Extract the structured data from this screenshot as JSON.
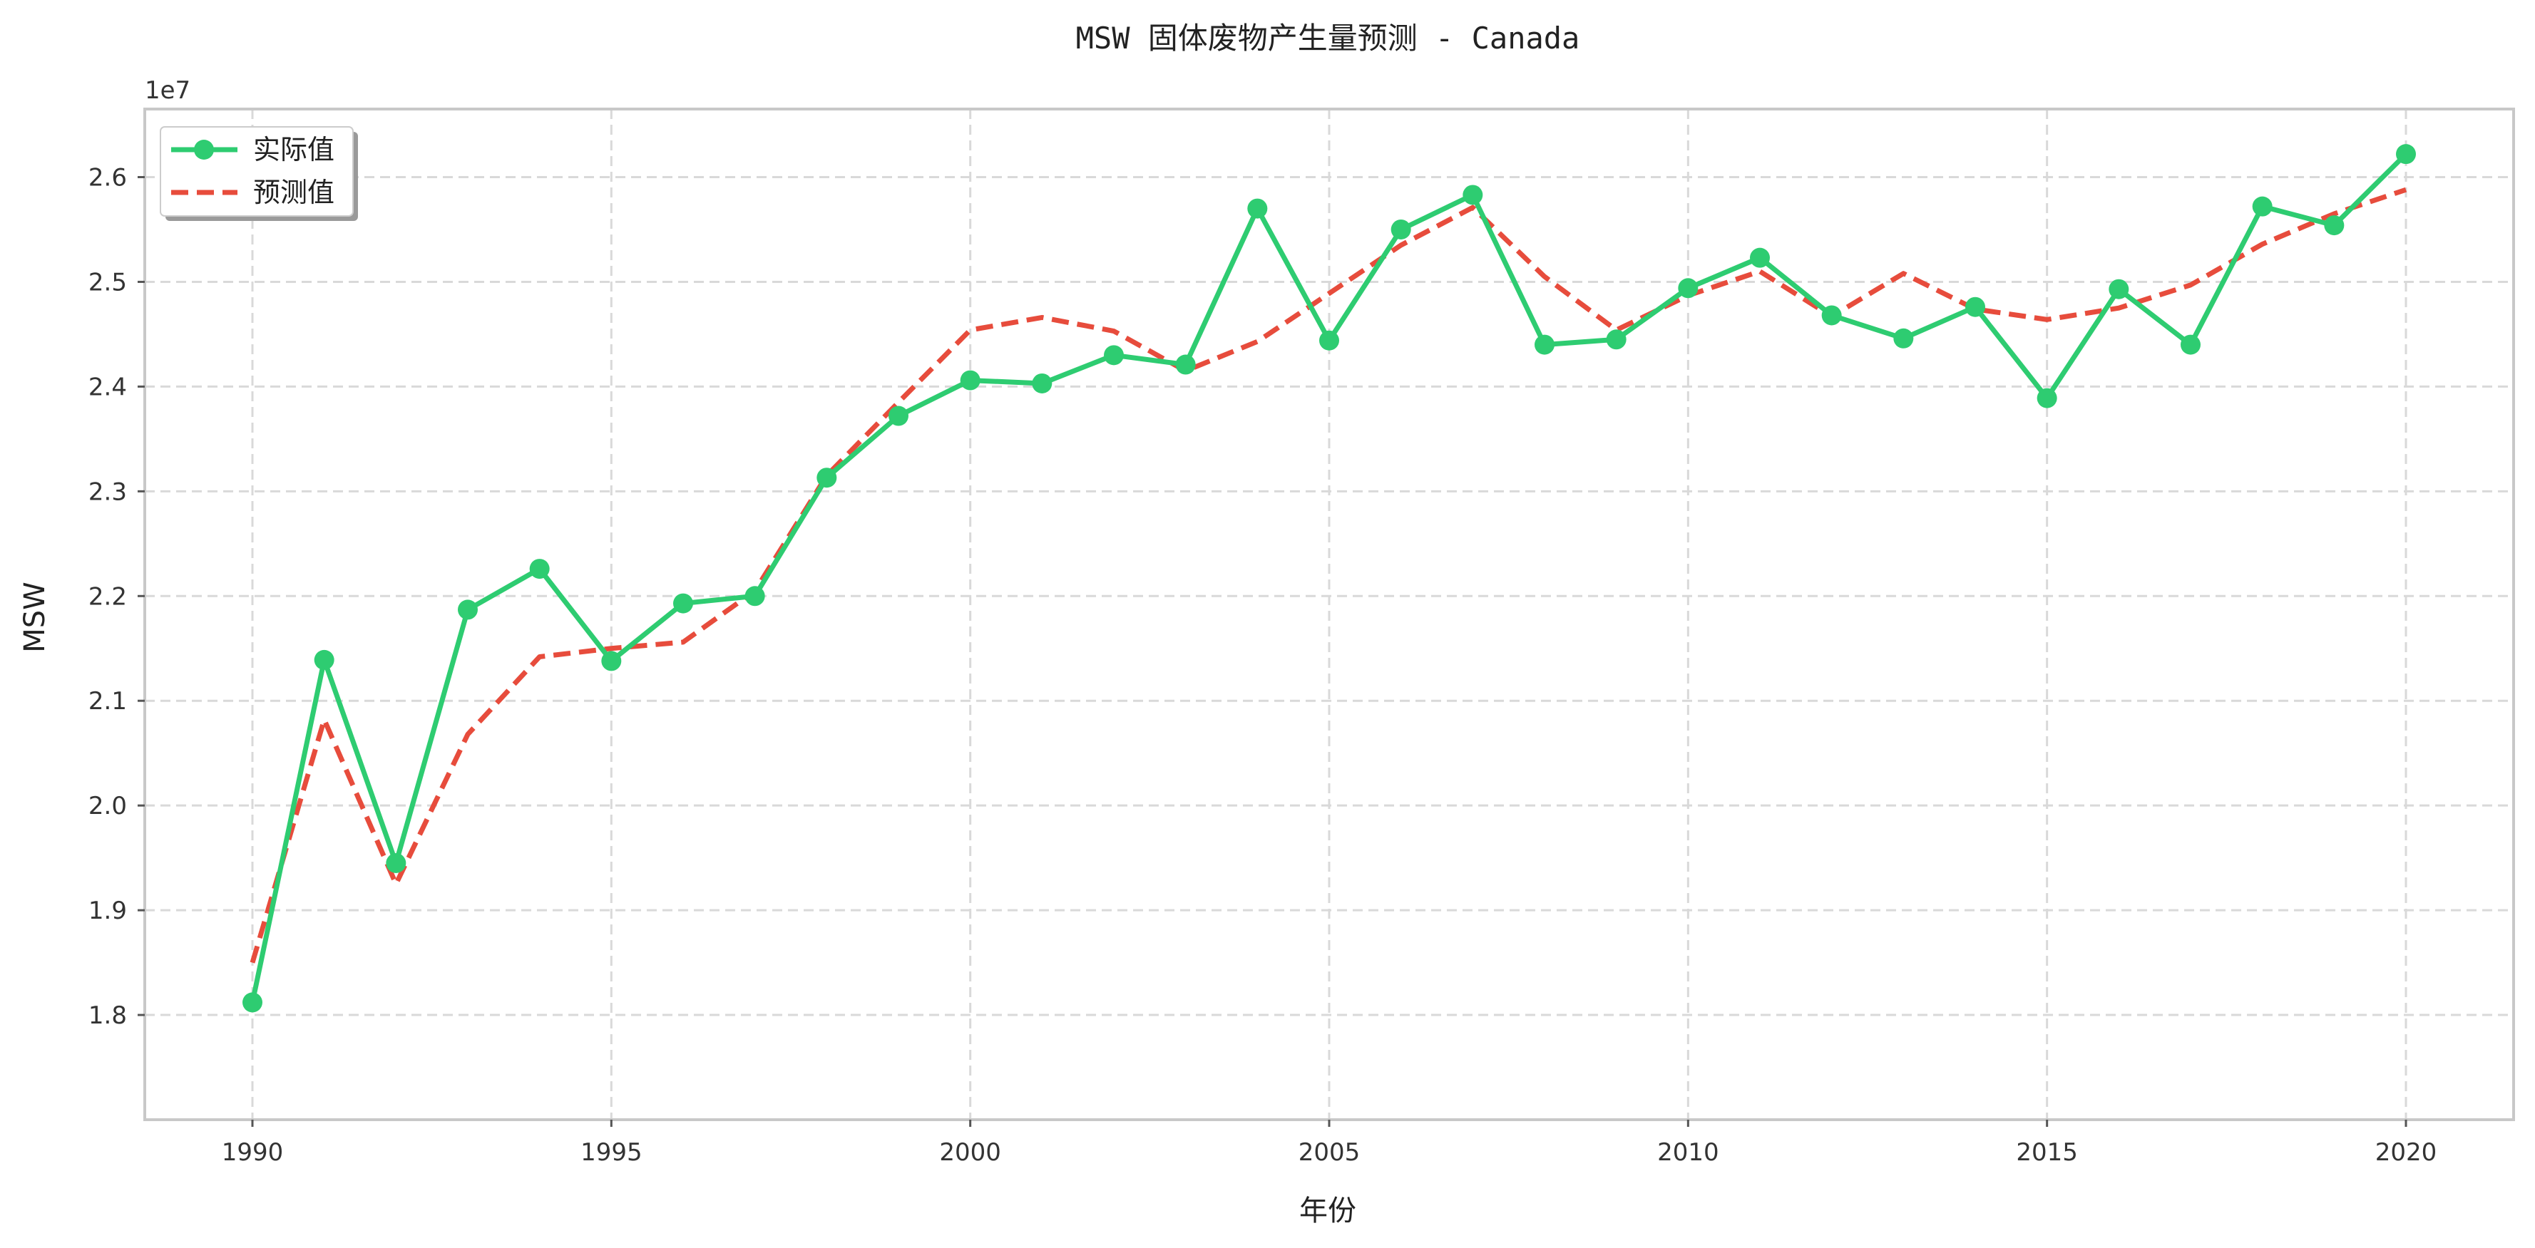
{
  "chart_data": {
    "type": "line",
    "title": "MSW 固体废物产生量预测 - Canada",
    "xlabel": "年份",
    "ylabel": "MSW",
    "y_offset_label": "1e7",
    "xlim": [
      1988.5,
      2021.5
    ],
    "ylim": [
      1.7,
      2.665
    ],
    "x_ticks": [
      1990,
      1995,
      2000,
      2005,
      2010,
      2015,
      2020
    ],
    "y_ticks": [
      1.8,
      1.9,
      2.0,
      2.1,
      2.2,
      2.3,
      2.4,
      2.5,
      2.6
    ],
    "y_tick_labels": [
      "1.8",
      "1.9",
      "2.0",
      "2.1",
      "2.2",
      "2.3",
      "2.4",
      "2.5",
      "2.6"
    ],
    "grid": true,
    "legend_position": "top-left",
    "x": [
      1990,
      1991,
      1992,
      1993,
      1994,
      1995,
      1996,
      1997,
      1998,
      1999,
      2000,
      2001,
      2002,
      2003,
      2004,
      2005,
      2006,
      2007,
      2008,
      2009,
      2010,
      2011,
      2012,
      2013,
      2014,
      2015,
      2016,
      2017,
      2018,
      2019,
      2020
    ],
    "series": [
      {
        "name": "实际值",
        "style": "solid-marker",
        "color": "#2ecc71",
        "values": [
          1.812,
          2.139,
          1.945,
          2.187,
          2.226,
          2.138,
          2.193,
          2.2,
          2.313,
          2.372,
          2.406,
          2.403,
          2.43,
          2.421,
          2.57,
          2.444,
          2.55,
          2.583,
          2.44,
          2.445,
          2.494,
          2.523,
          2.468,
          2.446,
          2.476,
          2.389,
          2.493,
          2.44,
          2.572,
          2.554,
          2.622
        ]
      },
      {
        "name": "预测值",
        "style": "dashed",
        "color": "#e74c3c",
        "values": [
          1.85,
          2.082,
          1.925,
          2.068,
          2.142,
          2.15,
          2.156,
          2.205,
          2.315,
          2.385,
          2.454,
          2.466,
          2.453,
          2.415,
          2.443,
          2.489,
          2.535,
          2.571,
          2.505,
          2.454,
          2.487,
          2.51,
          2.467,
          2.508,
          2.474,
          2.464,
          2.475,
          2.497,
          2.536,
          2.565,
          2.588
        ]
      }
    ]
  }
}
